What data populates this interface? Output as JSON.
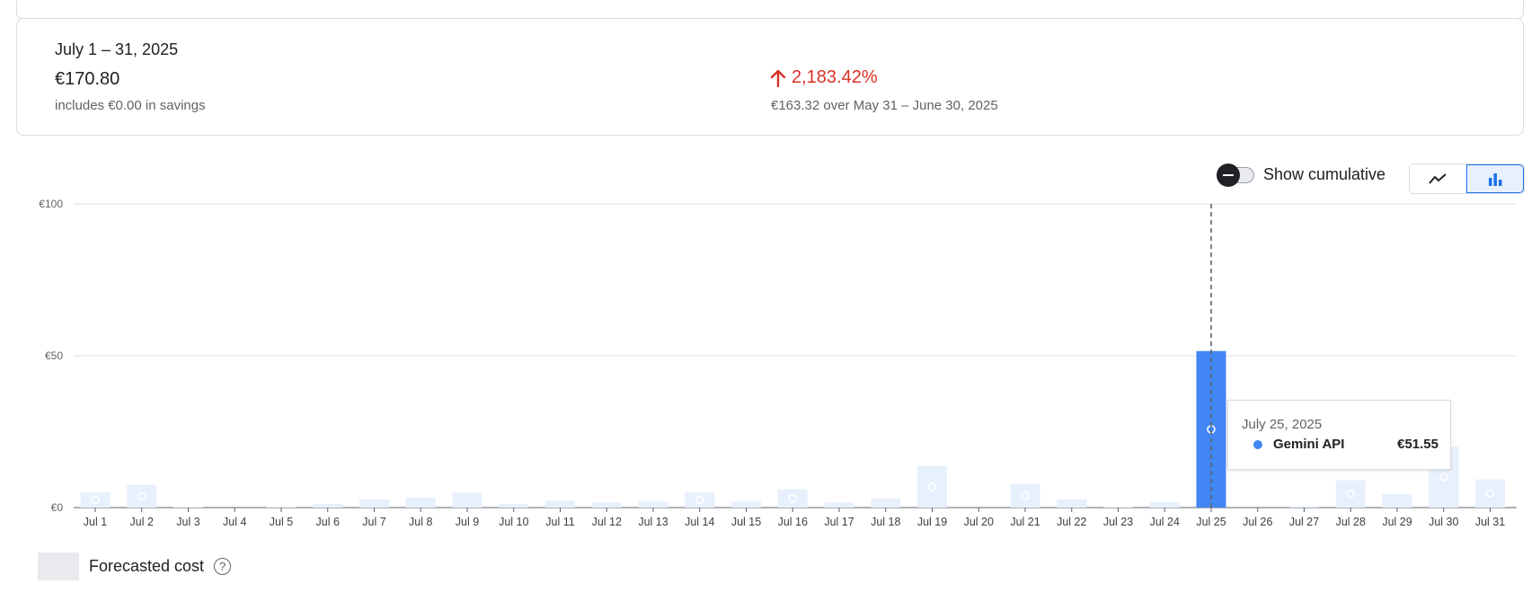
{
  "summary": {
    "period": "July 1 – 31, 2025",
    "total": "€170.80",
    "savings": "includes €0.00 in savings",
    "change_pct": "2,183.42%",
    "compare": "€163.32 over May 31 – June 30, 2025"
  },
  "controls": {
    "cumulative_label": "Show cumulative",
    "cumulative_on": false,
    "line_view_icon": "line-chart-icon",
    "bar_view_icon": "bar-chart-icon",
    "active_view": "bar"
  },
  "tooltip": {
    "date": "July 25, 2025",
    "series": "Gemini API",
    "value": "€51.55"
  },
  "legend": {
    "forecast_label": "Forecasted cost",
    "help_glyph": "?"
  },
  "colors": {
    "actual": "#4285f4",
    "forecast": "#e8f0fe",
    "increase": "#d93025"
  },
  "chart_data": {
    "type": "bar",
    "categories": [
      "Jul 1",
      "Jul 2",
      "Jul 3",
      "Jul 4",
      "Jul 5",
      "Jul 6",
      "Jul 7",
      "Jul 8",
      "Jul 9",
      "Jul 10",
      "Jul 11",
      "Jul 12",
      "Jul 13",
      "Jul 14",
      "Jul 15",
      "Jul 16",
      "Jul 17",
      "Jul 18",
      "Jul 19",
      "Jul 20",
      "Jul 21",
      "Jul 22",
      "Jul 23",
      "Jul 24",
      "Jul 25",
      "Jul 26",
      "Jul 27",
      "Jul 28",
      "Jul 29",
      "Jul 30",
      "Jul 31"
    ],
    "series": [
      {
        "name": "Gemini API",
        "values": [
          0,
          0,
          0,
          0,
          0,
          0,
          0,
          0,
          0,
          0,
          0,
          0,
          0,
          0,
          0,
          0,
          0,
          0,
          0,
          0,
          0,
          0,
          0,
          0,
          51.55,
          0,
          0,
          0,
          0,
          0,
          0
        ]
      },
      {
        "name": "Forecasted cost",
        "values": [
          5,
          7.5,
          0.3,
          0,
          0.3,
          1.2,
          2.7,
          3.3,
          4.9,
          1.2,
          2.3,
          1.7,
          2,
          5,
          2,
          6,
          1.7,
          3,
          13.7,
          0,
          7.8,
          2.7,
          0.3,
          1.8,
          0,
          0,
          0.5,
          9,
          4.5,
          20,
          9.3
        ]
      }
    ],
    "highlight_index": 24,
    "ylim": [
      0,
      100
    ],
    "yticks": [
      0,
      50,
      100
    ],
    "ytick_labels": [
      "€0",
      "€50",
      "€100"
    ],
    "grid": true
  }
}
